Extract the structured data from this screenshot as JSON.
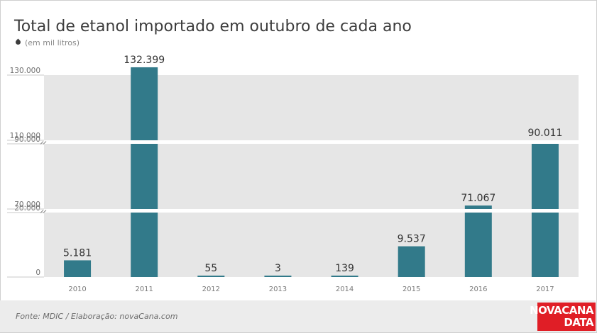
{
  "title": "Total de etanol importado em outubro de cada ano",
  "subtitle": "(em mil litros)",
  "icon": "drop-icon",
  "source": "Fonte: MDIC / Elaboração: novaCana.com",
  "logo": {
    "line1": "NOVACANA",
    "line2": "DATA"
  },
  "colors": {
    "bar": "#327a8a",
    "panel": "#e6e6e6",
    "logo": "#e01e26",
    "text": "#3c3c3c"
  },
  "chart_data": {
    "type": "bar",
    "categories": [
      "2010",
      "2011",
      "2012",
      "2013",
      "2014",
      "2015",
      "2016",
      "2017"
    ],
    "values": [
      5181,
      132399,
      55,
      3,
      139,
      9537,
      71067,
      90011
    ],
    "value_labels": [
      "5.181",
      "132.399",
      "55",
      "3",
      "139",
      "9.537",
      "71.067",
      "90.011"
    ],
    "broken_axis": true,
    "segments": [
      {
        "range": [
          0,
          20000
        ],
        "ticks": [
          {
            "v": 0,
            "label": "0"
          },
          {
            "v": 20000,
            "label": "20.000"
          }
        ]
      },
      {
        "range": [
          70000,
          90000
        ],
        "ticks": [
          {
            "v": 70000,
            "label": "70.000"
          },
          {
            "v": 90000,
            "label": "90.000"
          }
        ]
      },
      {
        "range": [
          110000,
          130000
        ],
        "ticks": [
          {
            "v": 110000,
            "label": "110.000"
          },
          {
            "v": 130000,
            "label": "130.000"
          }
        ]
      }
    ]
  }
}
